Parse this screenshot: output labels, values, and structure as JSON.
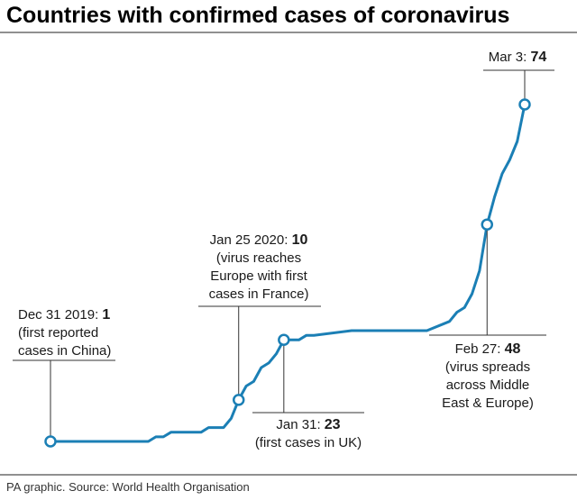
{
  "chart_data": {
    "type": "line",
    "title": "Countries with confirmed cases of coronavirus",
    "source": "PA graphic. Source: World Health Organisation",
    "xlabel": "",
    "ylabel": "",
    "ylim": [
      0,
      80
    ],
    "grid": false,
    "series": [
      {
        "color": "#1b7fb5",
        "x": [
          "2019-12-31",
          "2020-01-13",
          "2020-01-14",
          "2020-01-15",
          "2020-01-16",
          "2020-01-20",
          "2020-01-21",
          "2020-01-23",
          "2020-01-24",
          "2020-01-25",
          "2020-01-26",
          "2020-01-27",
          "2020-01-28",
          "2020-01-29",
          "2020-01-30",
          "2020-01-31",
          "2020-02-02",
          "2020-02-03",
          "2020-02-04",
          "2020-02-09",
          "2020-02-14",
          "2020-02-19",
          "2020-02-22",
          "2020-02-23",
          "2020-02-24",
          "2020-02-25",
          "2020-02-26",
          "2020-02-27",
          "2020-02-28",
          "2020-02-29",
          "2020-03-01",
          "2020-03-02",
          "2020-03-03"
        ],
        "values": [
          1,
          1,
          2,
          2,
          3,
          3,
          4,
          4,
          6,
          10,
          13,
          14,
          17,
          18,
          20,
          23,
          23,
          24,
          24,
          25,
          25,
          25,
          27,
          29,
          30,
          33,
          38,
          48,
          54,
          59,
          62,
          66,
          74
        ]
      }
    ],
    "annotations": [
      {
        "date": "Dec 31 2019",
        "value": "1",
        "note": [
          "(first reported",
          "cases in China)"
        ]
      },
      {
        "date": "Jan 25 2020",
        "value": "10",
        "note": [
          "(virus reaches",
          "Europe with first",
          "cases in France)"
        ]
      },
      {
        "date": "Jan 31",
        "value": "23",
        "note": [
          "(first cases in UK)"
        ]
      },
      {
        "date": "Feb 27",
        "value": "48",
        "note": [
          "(virus spreads",
          "across Middle",
          "East & Europe)"
        ]
      },
      {
        "date": "Mar 3",
        "value": "74",
        "note": []
      }
    ]
  }
}
